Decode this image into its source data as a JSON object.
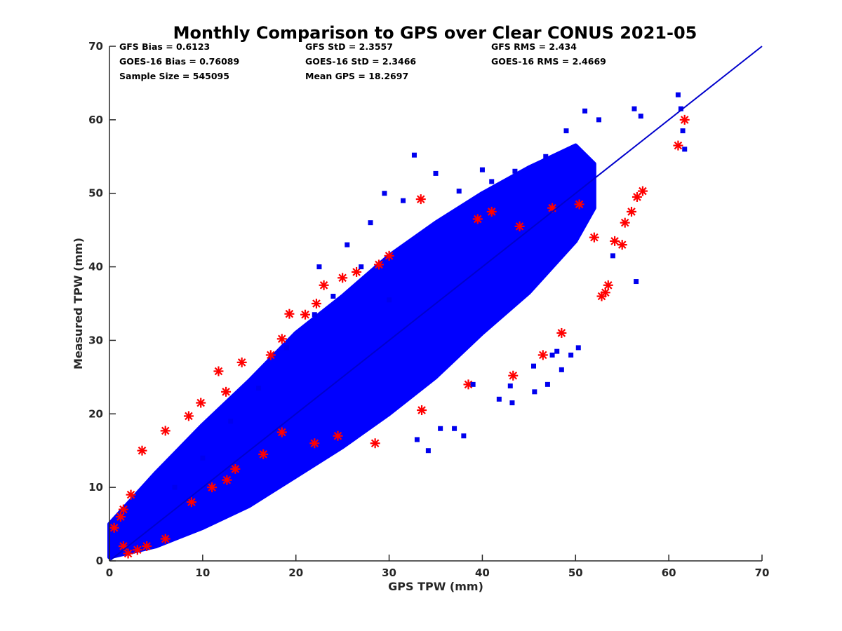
{
  "chart_data": {
    "type": "scatter",
    "title": "Monthly Comparison to GPS over Clear CONUS 2021-05",
    "xlabel": "GPS TPW (mm)",
    "ylabel": "Measured TPW (mm)",
    "xlim": [
      0,
      70
    ],
    "ylim": [
      0,
      70
    ],
    "xticks": [
      "0",
      "10",
      "20",
      "30",
      "40",
      "50",
      "60",
      "70"
    ],
    "yticks": [
      "0",
      "10",
      "20",
      "30",
      "40",
      "50",
      "60",
      "70"
    ],
    "grid": false,
    "legend": "none",
    "stats": [
      "GFS Bias = 0.6123",
      "GFS StD = 2.3557",
      "GFS RMS = 2.434",
      "GOES-16 Bias = 0.76089",
      "GOES-16 StD = 2.3466",
      "GOES-16 RMS = 2.4669",
      "Sample Size = 545095",
      "Mean GPS = 18.2697"
    ],
    "reference_line": {
      "x": [
        0,
        70
      ],
      "y": [
        0,
        70
      ],
      "color": "#0000cc"
    },
    "series": [
      {
        "marker": "asterisk",
        "color": "#ff0000",
        "x": [
          0.5,
          1.2,
          1.5,
          2.3,
          3.5,
          6.0,
          8.5,
          9.8,
          11.7,
          12.5,
          14.2,
          17.3,
          18.5,
          19.3,
          21.0,
          22.2,
          23.0,
          25.0,
          26.5,
          28.9,
          30.0,
          33.4,
          39.5,
          41.0,
          44.0,
          47.5,
          50.4,
          52.0,
          53.2,
          53.5,
          54.2,
          55.3,
          56.0,
          56.6,
          57.2,
          61.0,
          61.7,
          16.5,
          18.5,
          22.0,
          24.5,
          28.5,
          33.5,
          38.5,
          43.3,
          46.5,
          48.5,
          52.8,
          55.0,
          6.0,
          8.8,
          11.0,
          12.6,
          13.5,
          2.0,
          4.0,
          1.5,
          3.0
        ],
        "y": [
          4.5,
          6.0,
          7.0,
          9.0,
          15.0,
          17.7,
          19.7,
          21.5,
          25.8,
          23.0,
          27.0,
          28.0,
          30.2,
          33.6,
          33.5,
          35.0,
          37.5,
          38.5,
          39.3,
          40.3,
          41.5,
          49.2,
          46.5,
          47.5,
          45.5,
          48.0,
          48.5,
          44.0,
          36.5,
          37.5,
          43.5,
          46.0,
          47.5,
          49.5,
          50.3,
          56.5,
          60.0,
          14.5,
          17.5,
          16.0,
          17.0,
          16.0,
          20.5,
          24.0,
          25.2,
          28.0,
          31.0,
          36.0,
          43.0,
          3.0,
          8.0,
          10.0,
          11.0,
          12.5,
          1.0,
          2.0,
          2.0,
          1.5
        ]
      },
      {
        "marker": "square",
        "color": "#0000ee",
        "x": [
          32.7,
          35.0,
          37.5,
          40.0,
          41.0,
          43.5,
          46.8,
          49.0,
          51.0,
          52.5,
          56.3,
          57.0,
          61.0,
          61.3,
          61.5,
          61.7,
          48.0,
          54.0,
          56.5,
          43.0,
          45.5,
          47.0,
          48.5,
          49.5,
          50.3,
          39.0,
          41.8,
          43.2,
          45.6,
          47.5,
          33.0,
          34.2,
          35.5,
          37.0,
          38.0,
          30.0,
          27.0,
          24.0,
          22.0,
          19.0,
          16.0,
          13.0,
          10.0,
          7.0,
          29.5,
          31.5,
          22.5,
          25.5,
          28.0
        ],
        "y": [
          55.2,
          52.7,
          50.3,
          53.2,
          51.6,
          53.0,
          55.0,
          58.5,
          61.2,
          60.0,
          61.5,
          60.5,
          63.4,
          61.5,
          58.5,
          56.0,
          28.5,
          41.5,
          38.0,
          23.8,
          26.5,
          24.0,
          26.0,
          28.0,
          29.0,
          24.0,
          22.0,
          21.5,
          23.0,
          28.0,
          16.5,
          15.0,
          18.0,
          18.0,
          17.0,
          35.5,
          40.0,
          36.0,
          33.5,
          29.0,
          23.5,
          19.0,
          14.0,
          10.0,
          50.0,
          49.0,
          40.0,
          43.0,
          46.0
        ]
      }
    ],
    "dense_cloud": {
      "color": "#0000ff",
      "upper_edge": {
        "x": [
          0,
          5,
          10,
          15,
          20,
          25,
          30,
          35,
          40,
          45,
          50,
          52
        ],
        "y": [
          5,
          12,
          18.5,
          24.5,
          31,
          36,
          41.5,
          46,
          50,
          53.5,
          56.5,
          54
        ]
      },
      "lower_edge": {
        "x": [
          52,
          50,
          45,
          40,
          35,
          30,
          25,
          20,
          15,
          10,
          5,
          0
        ],
        "y": [
          48,
          43.5,
          36.5,
          31,
          25,
          20,
          15.5,
          11.5,
          7.5,
          4.5,
          2,
          0.5
        ]
      }
    }
  }
}
